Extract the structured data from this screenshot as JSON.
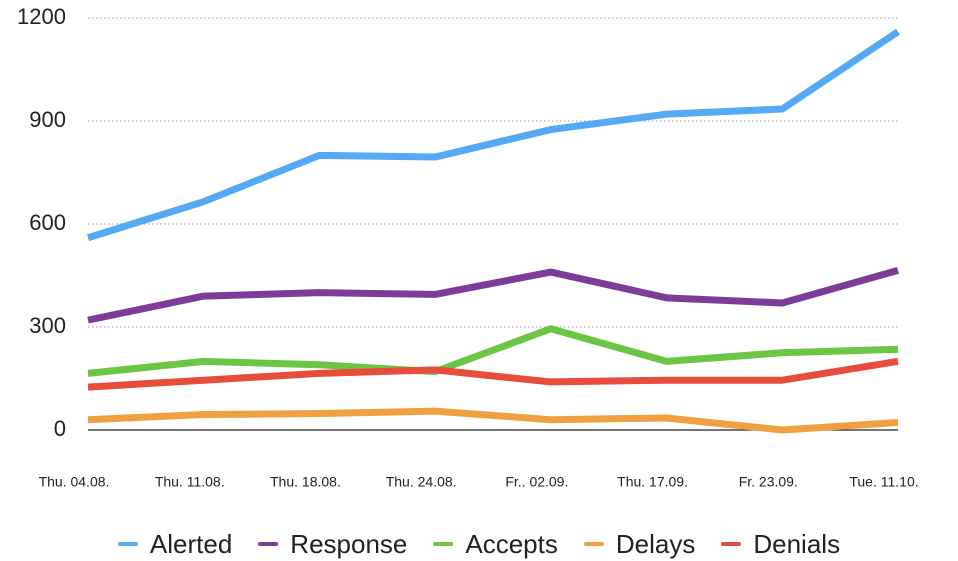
{
  "chart_data": {
    "type": "line",
    "categories": [
      "Thu. 04.08.",
      "Thu. 11.08.",
      "Thu. 18.08.",
      "Thu. 24.08.",
      "Fr.. 02.09.",
      "Thu. 17.09.",
      "Fr. 23.09.",
      "Tue. 11.10."
    ],
    "series": [
      {
        "name": "Alerted",
        "color": "#55aaf5",
        "values": [
          560,
          665,
          800,
          795,
          875,
          920,
          935,
          1160
        ]
      },
      {
        "name": "Response",
        "color": "#7d3c98",
        "values": [
          320,
          390,
          400,
          395,
          460,
          385,
          370,
          465
        ]
      },
      {
        "name": "Accepts",
        "color": "#6cc644",
        "values": [
          165,
          200,
          190,
          170,
          295,
          200,
          225,
          235
        ]
      },
      {
        "name": "Delays",
        "color": "#f0a040",
        "values": [
          30,
          45,
          48,
          55,
          30,
          35,
          0,
          22
        ]
      },
      {
        "name": "Denials",
        "color": "#e84c3d",
        "values": [
          125,
          145,
          165,
          175,
          140,
          145,
          145,
          200
        ]
      }
    ],
    "ylim": [
      0,
      1200
    ],
    "yticks": [
      0,
      300,
      600,
      900,
      1200
    ],
    "grid": true,
    "legend": "bottom"
  }
}
